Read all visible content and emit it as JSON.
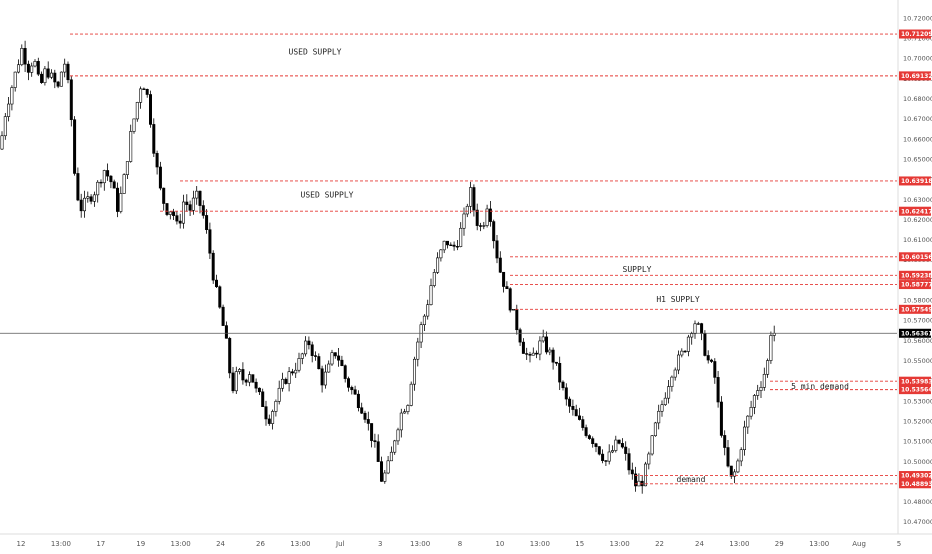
{
  "chart_data": {
    "type": "candlestick",
    "colors": {
      "candle_up": "#ffffff",
      "candle_down": "#000000",
      "candle_outline": "#000000",
      "level_line": "#e53935",
      "price_tag_bg": "#e53935",
      "current_price_line": "#555555",
      "current_price_tag_bg": "#000000"
    },
    "y_ticks": [
      "10.72000",
      "10.71000",
      "10.70000",
      "10.69000",
      "10.68000",
      "10.67000",
      "10.66000",
      "10.65000",
      "10.64000",
      "10.63000",
      "10.62000",
      "10.61000",
      "10.60000",
      "10.59000",
      "10.58000",
      "10.57000",
      "10.56000",
      "10.55000",
      "10.54000",
      "10.53000",
      "10.52000",
      "10.51000",
      "10.50000",
      "10.49000",
      "10.48000",
      "10.47000"
    ],
    "ylim": [
      10.465,
      10.725
    ],
    "x_ticks": [
      "12",
      "13:00",
      "17",
      "19",
      "13:00",
      "24",
      "26",
      "13:00",
      "Jul",
      "3",
      "13:00",
      "8",
      "10",
      "13:00",
      "15",
      "13:00",
      "22",
      "24",
      "13:00",
      "29",
      "13:00",
      "Aug",
      "5"
    ],
    "levels": [
      {
        "price": 10.71209,
        "label": "10.71209",
        "start_index": 70
      },
      {
        "price": 10.69132,
        "label": "10.69132",
        "start_index": 70
      },
      {
        "price": 10.63918,
        "label": "10.63918",
        "start_index": 180
      },
      {
        "price": 10.62417,
        "label": "10.62417",
        "start_index": 160
      },
      {
        "price": 10.60156,
        "label": "10.60156",
        "start_index": 510
      },
      {
        "price": 10.59238,
        "label": "10.59238",
        "start_index": 510
      },
      {
        "price": 10.58777,
        "label": "10.58777",
        "start_index": 510
      },
      {
        "price": 10.57549,
        "label": "10.57549",
        "start_index": 515
      },
      {
        "price": 10.53983,
        "label": "10.53983",
        "start_index": 770
      },
      {
        "price": 10.53564,
        "label": "10.53564",
        "start_index": 770
      },
      {
        "price": 10.49302,
        "label": "10.49302",
        "start_index": 635
      },
      {
        "price": 10.48893,
        "label": "10.48893",
        "start_index": 635
      }
    ],
    "current_price": {
      "price": 10.56361,
      "label": "10.56361"
    },
    "annotations": [
      {
        "text": "USED SUPPLY",
        "price": 10.7035
      },
      {
        "text": "USED SUPPLY",
        "price": 10.6325
      },
      {
        "text": "SUPPLY",
        "price": 10.5955
      },
      {
        "text": "H1 SUPPLY",
        "price": 10.5805
      },
      {
        "text": "5 min demand",
        "price": 10.5375
      },
      {
        "text": "demand",
        "price": 10.4912
      }
    ],
    "path_points": [
      [
        0,
        10.655
      ],
      [
        6,
        10.675
      ],
      [
        14,
        10.69
      ],
      [
        22,
        10.705
      ],
      [
        28,
        10.695
      ],
      [
        34,
        10.7
      ],
      [
        40,
        10.685
      ],
      [
        46,
        10.695
      ],
      [
        52,
        10.69
      ],
      [
        58,
        10.685
      ],
      [
        64,
        10.7
      ],
      [
        70,
        10.68
      ],
      [
        75,
        10.64
      ],
      [
        80,
        10.625
      ],
      [
        88,
        10.63
      ],
      [
        96,
        10.635
      ],
      [
        104,
        10.645
      ],
      [
        112,
        10.638
      ],
      [
        118,
        10.625
      ],
      [
        124,
        10.64
      ],
      [
        130,
        10.66
      ],
      [
        136,
        10.675
      ],
      [
        142,
        10.69
      ],
      [
        148,
        10.68
      ],
      [
        154,
        10.655
      ],
      [
        160,
        10.635
      ],
      [
        166,
        10.625
      ],
      [
        172,
        10.625
      ],
      [
        178,
        10.615
      ],
      [
        184,
        10.63
      ],
      [
        190,
        10.625
      ],
      [
        196,
        10.632
      ],
      [
        202,
        10.625
      ],
      [
        208,
        10.61
      ],
      [
        214,
        10.59
      ],
      [
        220,
        10.575
      ],
      [
        226,
        10.56
      ],
      [
        232,
        10.535
      ],
      [
        238,
        10.545
      ],
      [
        244,
        10.54
      ],
      [
        250,
        10.545
      ],
      [
        256,
        10.535
      ],
      [
        262,
        10.53
      ],
      [
        268,
        10.52
      ],
      [
        276,
        10.53
      ],
      [
        284,
        10.54
      ],
      [
        292,
        10.545
      ],
      [
        300,
        10.55
      ],
      [
        308,
        10.56
      ],
      [
        316,
        10.55
      ],
      [
        322,
        10.54
      ],
      [
        328,
        10.545
      ],
      [
        334,
        10.555
      ],
      [
        340,
        10.55
      ],
      [
        346,
        10.54
      ],
      [
        352,
        10.535
      ],
      [
        358,
        10.53
      ],
      [
        364,
        10.525
      ],
      [
        370,
        10.515
      ],
      [
        376,
        10.505
      ],
      [
        382,
        10.49
      ],
      [
        390,
        10.5
      ],
      [
        396,
        10.515
      ],
      [
        402,
        10.525
      ],
      [
        408,
        10.53
      ],
      [
        414,
        10.55
      ],
      [
        420,
        10.565
      ],
      [
        426,
        10.575
      ],
      [
        432,
        10.59
      ],
      [
        438,
        10.6
      ],
      [
        446,
        10.61
      ],
      [
        452,
        10.605
      ],
      [
        458,
        10.61
      ],
      [
        464,
        10.62
      ],
      [
        470,
        10.635
      ],
      [
        476,
        10.62
      ],
      [
        482,
        10.615
      ],
      [
        488,
        10.63
      ],
      [
        494,
        10.61
      ],
      [
        500,
        10.595
      ],
      [
        506,
        10.585
      ],
      [
        512,
        10.575
      ],
      [
        518,
        10.565
      ],
      [
        524,
        10.555
      ],
      [
        530,
        10.55
      ],
      [
        536,
        10.555
      ],
      [
        542,
        10.56
      ],
      [
        548,
        10.555
      ],
      [
        554,
        10.55
      ],
      [
        560,
        10.54
      ],
      [
        566,
        10.53
      ],
      [
        572,
        10.525
      ],
      [
        578,
        10.52
      ],
      [
        586,
        10.515
      ],
      [
        594,
        10.51
      ],
      [
        600,
        10.505
      ],
      [
        606,
        10.5
      ],
      [
        612,
        10.505
      ],
      [
        618,
        10.51
      ],
      [
        624,
        10.505
      ],
      [
        630,
        10.495
      ],
      [
        636,
        10.488
      ],
      [
        642,
        10.49
      ],
      [
        648,
        10.5
      ],
      [
        654,
        10.515
      ],
      [
        660,
        10.525
      ],
      [
        666,
        10.535
      ],
      [
        672,
        10.545
      ],
      [
        678,
        10.55
      ],
      [
        684,
        10.555
      ],
      [
        690,
        10.565
      ],
      [
        696,
        10.57
      ],
      [
        702,
        10.56
      ],
      [
        708,
        10.55
      ],
      [
        714,
        10.545
      ],
      [
        720,
        10.52
      ],
      [
        726,
        10.5
      ],
      [
        732,
        10.49
      ],
      [
        738,
        10.5
      ],
      [
        744,
        10.515
      ],
      [
        750,
        10.525
      ],
      [
        756,
        10.535
      ],
      [
        762,
        10.54
      ],
      [
        768,
        10.55
      ],
      [
        772,
        10.57
      ],
      [
        776,
        10.563
      ]
    ]
  }
}
